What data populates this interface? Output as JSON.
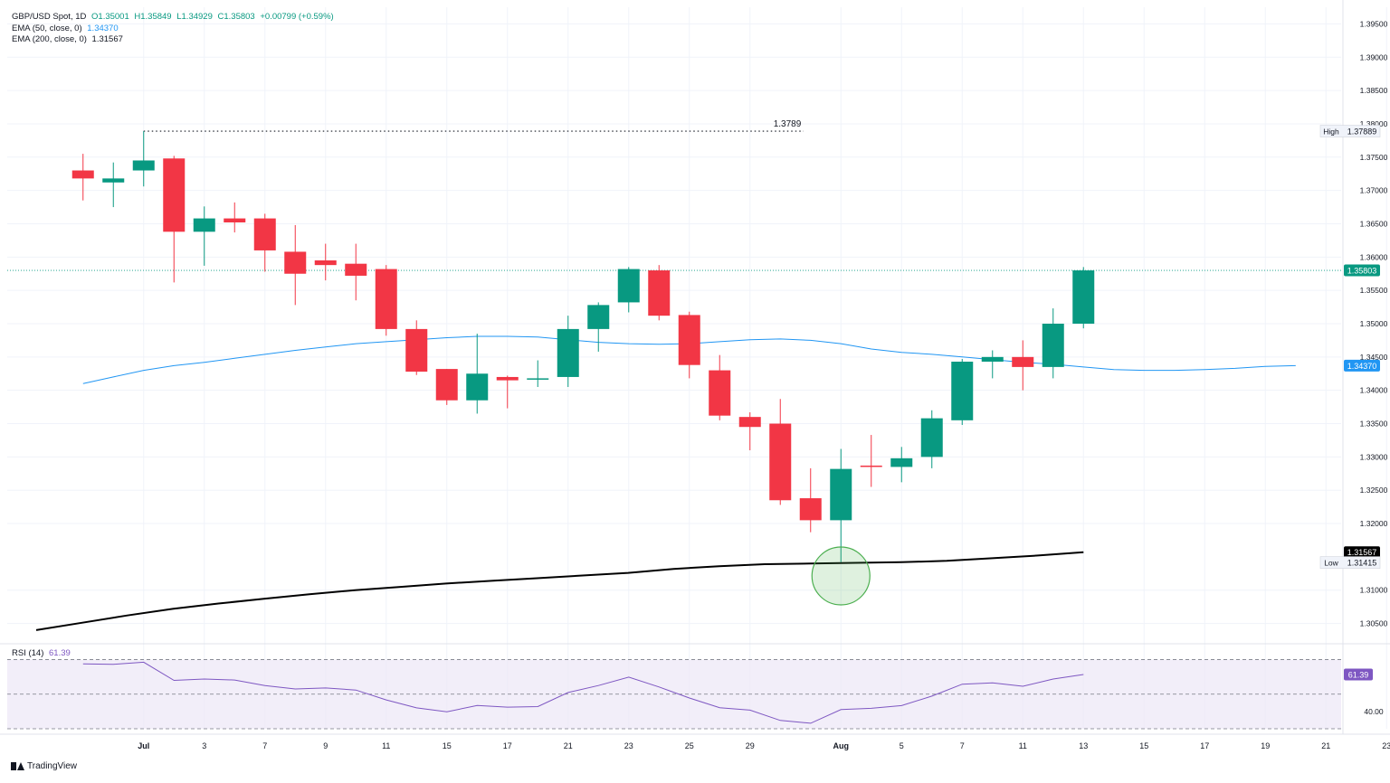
{
  "header": {
    "symbol_line": "GBP/USD Spot, 1D",
    "open": "O1.35001",
    "high": "H1.35849",
    "low": "L1.34929",
    "close": "C1.35803",
    "change": "+0.00799 (+0.59%)",
    "ema50_label": "EMA (50, close, 0)",
    "ema50_value": "1.34370",
    "ema200_label": "EMA (200, close, 0)",
    "ema200_value": "1.31567",
    "rsi_label": "RSI (14)",
    "rsi_value": "61.39"
  },
  "brand": "TradingView",
  "colors": {
    "up": "#089981",
    "down": "#f23645",
    "ema50": "#2196f3",
    "ema200": "#000000",
    "rsi": "#7e57c2",
    "rsi_band": "#ede7f6",
    "highlight": "#4caf50"
  },
  "chart_data": {
    "type": "candlestick",
    "title": "GBP/USD Spot, 1D",
    "price_axis": {
      "ylim": [
        1.3025,
        1.3975
      ],
      "ticks": [
        "1.39500",
        "1.39000",
        "1.38500",
        "1.38000",
        "1.37500",
        "1.37000",
        "1.36500",
        "1.36000",
        "1.35500",
        "1.35000",
        "1.34500",
        "1.34000",
        "1.33500",
        "1.33000",
        "1.32500",
        "1.32000",
        "1.31000",
        "1.30500"
      ]
    },
    "x_axis": {
      "slot_range": [
        -1.25,
        20.75
      ],
      "ticks": [
        {
          "label": "Jul",
          "slot": 1
        },
        {
          "label": "3",
          "slot": 2
        },
        {
          "label": "7",
          "slot": 3
        },
        {
          "label": "9",
          "slot": 4
        },
        {
          "label": "11",
          "slot": 5
        },
        {
          "label": "15",
          "slot": 6
        },
        {
          "label": "17",
          "slot": 7
        },
        {
          "label": "21",
          "slot": 8
        },
        {
          "label": "23",
          "slot": 9
        },
        {
          "label": "25",
          "slot": 10
        },
        {
          "label": "29",
          "slot": 11
        },
        {
          "label": "Aug",
          "slot": 12.5
        },
        {
          "label": "5",
          "slot": 13.5
        },
        {
          "label": "7",
          "slot": 14.5
        },
        {
          "label": "11",
          "slot": 15.5
        },
        {
          "label": "13",
          "slot": 16.5
        },
        {
          "label": "15",
          "slot": 17.5
        },
        {
          "label": "17",
          "slot": 18.5
        },
        {
          "label": "19",
          "slot": 19.5
        },
        {
          "label": "21",
          "slot": 20.5
        },
        {
          "label": "23",
          "slot": 21.5
        }
      ]
    },
    "candles": [
      {
        "o": 1.373,
        "h": 1.3755,
        "l": 1.3685,
        "c": 1.3718
      },
      {
        "o": 1.3712,
        "h": 1.3742,
        "l": 1.3675,
        "c": 1.3718
      },
      {
        "o": 1.373,
        "h": 1.3789,
        "l": 1.3706,
        "c": 1.3745
      },
      {
        "o": 1.3748,
        "h": 1.3752,
        "l": 1.3562,
        "c": 1.3638
      },
      {
        "o": 1.3638,
        "h": 1.3676,
        "l": 1.3587,
        "c": 1.3658
      },
      {
        "o": 1.3658,
        "h": 1.3682,
        "l": 1.3637,
        "c": 1.3652
      },
      {
        "o": 1.3658,
        "h": 1.3665,
        "l": 1.3578,
        "c": 1.361
      },
      {
        "o": 1.3608,
        "h": 1.3648,
        "l": 1.3528,
        "c": 1.3575
      },
      {
        "o": 1.3595,
        "h": 1.362,
        "l": 1.3565,
        "c": 1.3588
      },
      {
        "o": 1.359,
        "h": 1.362,
        "l": 1.3535,
        "c": 1.3572
      },
      {
        "o": 1.3582,
        "h": 1.3588,
        "l": 1.3482,
        "c": 1.3492
      },
      {
        "o": 1.3492,
        "h": 1.3505,
        "l": 1.3423,
        "c": 1.3428
      },
      {
        "o": 1.3432,
        "h": 1.3432,
        "l": 1.3378,
        "c": 1.3385
      },
      {
        "o": 1.3385,
        "h": 1.3485,
        "l": 1.3365,
        "c": 1.3425
      },
      {
        "o": 1.342,
        "h": 1.3422,
        "l": 1.3373,
        "c": 1.3415
      },
      {
        "o": 1.3416,
        "h": 1.3445,
        "l": 1.3405,
        "c": 1.3418
      },
      {
        "o": 1.342,
        "h": 1.3512,
        "l": 1.3405,
        "c": 1.3492
      },
      {
        "o": 1.3492,
        "h": 1.3532,
        "l": 1.3458,
        "c": 1.3528
      },
      {
        "o": 1.3532,
        "h": 1.3585,
        "l": 1.3517,
        "c": 1.3582
      },
      {
        "o": 1.358,
        "h": 1.3588,
        "l": 1.3505,
        "c": 1.3512
      },
      {
        "o": 1.3513,
        "h": 1.3518,
        "l": 1.3418,
        "c": 1.3438
      },
      {
        "o": 1.343,
        "h": 1.3453,
        "l": 1.3355,
        "c": 1.3362
      },
      {
        "o": 1.336,
        "h": 1.3367,
        "l": 1.331,
        "c": 1.3345
      },
      {
        "o": 1.335,
        "h": 1.3387,
        "l": 1.3228,
        "c": 1.3235
      },
      {
        "o": 1.3238,
        "h": 1.3283,
        "l": 1.3187,
        "c": 1.3205
      },
      {
        "o": 1.3205,
        "h": 1.3312,
        "l": 1.3142,
        "c": 1.3282
      },
      {
        "o": 1.3287,
        "h": 1.3333,
        "l": 1.3255,
        "c": 1.3285
      },
      {
        "o": 1.3285,
        "h": 1.3315,
        "l": 1.3262,
        "c": 1.3298
      },
      {
        "o": 1.33,
        "h": 1.337,
        "l": 1.3283,
        "c": 1.3358
      },
      {
        "o": 1.3355,
        "h": 1.3447,
        "l": 1.3348,
        "c": 1.3443
      },
      {
        "o": 1.3443,
        "h": 1.346,
        "l": 1.3418,
        "c": 1.345
      },
      {
        "o": 1.345,
        "h": 1.3475,
        "l": 1.34,
        "c": 1.3435
      },
      {
        "o": 1.3435,
        "h": 1.3523,
        "l": 1.3418,
        "c": 1.35
      },
      {
        "o": 1.35,
        "h": 1.3585,
        "l": 1.3493,
        "c": 1.358
      }
    ],
    "ema50": [
      1.341,
      1.342,
      1.343,
      1.3437,
      1.3442,
      1.3448,
      1.3454,
      1.346,
      1.3465,
      1.347,
      1.3473,
      1.3476,
      1.3479,
      1.3481,
      1.3481,
      1.348,
      1.3476,
      1.3472,
      1.347,
      1.3469,
      1.347,
      1.3473,
      1.3476,
      1.3477,
      1.3475,
      1.347,
      1.3462,
      1.3457,
      1.3454,
      1.345,
      1.3446,
      1.3442,
      1.3439,
      1.3435,
      1.3431,
      1.343,
      1.343,
      1.3431,
      1.3433,
      1.3436,
      1.3437
    ],
    "ema200": [
      1.304,
      1.3051,
      1.3062,
      1.3072,
      1.308,
      1.3087,
      1.3094,
      1.31,
      1.3105,
      1.311,
      1.3114,
      1.3118,
      1.3122,
      1.3126,
      1.3132,
      1.3136,
      1.3139,
      1.314,
      1.3141,
      1.3142,
      1.3144,
      1.3148,
      1.3152,
      1.3157
    ],
    "high_marker": {
      "label": "1.3789",
      "value": 1.3789,
      "tag": "High",
      "tag_value": "1.37889"
    },
    "low_marker": {
      "tag": "Low",
      "tag_value": "1.31415"
    },
    "last_price": {
      "value": 1.358,
      "label": "1.35803"
    },
    "ema50_last": {
      "value": 1.3437,
      "label": "1.34370"
    },
    "ema200_last": {
      "value": 1.3157,
      "label": "1.31567"
    },
    "rsi": {
      "ylim": [
        30,
        75
      ],
      "band": [
        30,
        70
      ],
      "mid": 50,
      "ticks": [
        "40.00"
      ],
      "last_label": "61.39",
      "values": [
        67.5,
        67.3,
        68.5,
        58.0,
        58.8,
        58.2,
        55.0,
        53.0,
        53.6,
        52.4,
        46.7,
        42.1,
        39.8,
        43.5,
        42.5,
        42.8,
        51.0,
        55.0,
        59.9,
        54.2,
        47.8,
        42.2,
        40.8,
        34.8,
        33.2,
        41.1,
        41.8,
        43.4,
        48.9,
        55.8,
        56.6,
        54.6,
        58.8,
        61.39
      ]
    }
  }
}
